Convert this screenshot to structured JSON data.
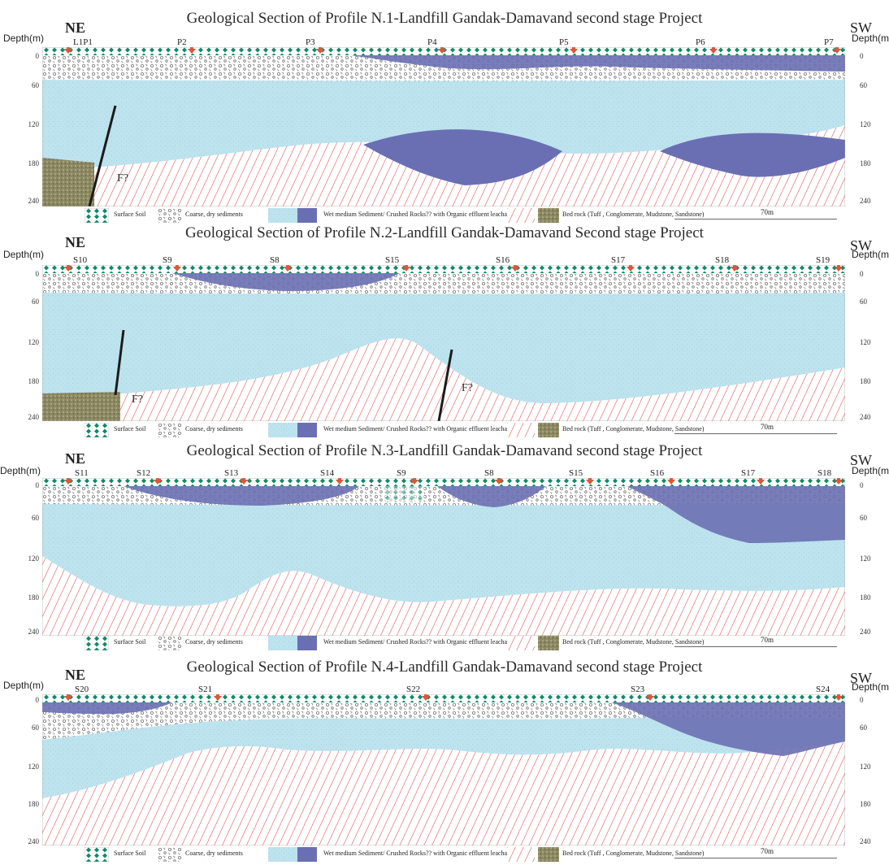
{
  "colors": {
    "surface": "#0e8a6a",
    "coarse": "#c9c9c9",
    "wet": "#bde3ee",
    "organic": "#6a6fb3",
    "bedrock_hatch": "#d94a4a",
    "tuff": "#7d7a5a",
    "arrow": "#e0553a"
  },
  "common": {
    "ne": "NE",
    "sw": "SW",
    "depth_label_left": "Depth(m)",
    "depth_label_right": "Depth(m)",
    "depth_ticks": [
      "0",
      "60",
      "120",
      "180",
      "240"
    ],
    "fault_label": "F?",
    "legend": {
      "surface": "Surface Soil",
      "coarse": "Coarse, dry sediments",
      "wet": "Wet medium Sediment/ Crushed Rocks?? with Organic effluent leachate",
      "bedrock": "Bed rock (Tuff , Conglomerate, Mudstone, Sandstone)",
      "scale": "70m"
    }
  },
  "profiles": [
    {
      "title": "Geological Section of Profile N.1-Landfill Gandak-Damavand second stage Project",
      "points": [
        "L1P1",
        "P2",
        "P3",
        "P4",
        "P5",
        "P6",
        "P7"
      ]
    },
    {
      "title": "Geological Section of Profile N.2-Landfill Gandak-Damavand Second stage Project",
      "points": [
        "S10",
        "S9",
        "S8",
        "S15",
        "S16",
        "S17",
        "S18",
        "S19"
      ]
    },
    {
      "title": "Geological Section of Profile N.3-Landfill Gandak-Damavand second stage Project",
      "points": [
        "S11",
        "S12",
        "S13",
        "S14",
        "S9",
        "S8",
        "S15",
        "S16",
        "S17",
        "S18"
      ]
    },
    {
      "title": "Geological Section of Profile N.4-Landfill Gandak-Damavand second stage Project",
      "points": [
        "S20",
        "S21",
        "S22",
        "S23",
        "S24"
      ]
    }
  ]
}
